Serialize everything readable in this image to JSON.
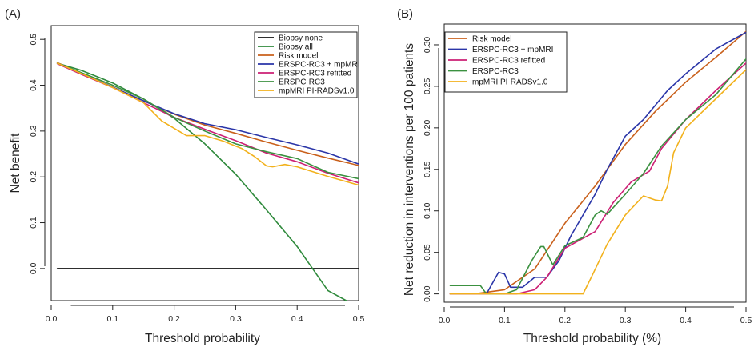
{
  "chart_data": [
    {
      "type": "line",
      "panel_label": "(A)",
      "xlabel": "Threshold probability",
      "ylabel": "Net benefit",
      "xlim": [
        0.0,
        0.5
      ],
      "ylim": [
        -0.07,
        0.53
      ],
      "xticks": [
        0.0,
        0.1,
        0.2,
        0.3,
        0.4,
        0.5
      ],
      "xtick_labels": [
        "0.0",
        "0.1",
        "0.2",
        "0.3",
        "0.4",
        "0.5"
      ],
      "yticks": [
        0.0,
        0.1,
        0.2,
        0.3,
        0.4,
        0.5
      ],
      "ytick_labels": [
        "0.0",
        "0.1",
        "0.2",
        "0.3",
        "0.4",
        "0.5"
      ],
      "legend_position": "top-right",
      "series": [
        {
          "name": "Biopsy none",
          "color": "#111111",
          "x": [
            0.01,
            0.5
          ],
          "y": [
            0.0,
            0.0
          ]
        },
        {
          "name": "Biopsy all",
          "color": "#2f8a3c",
          "x": [
            0.01,
            0.05,
            0.1,
            0.15,
            0.2,
            0.25,
            0.3,
            0.35,
            0.4,
            0.45,
            0.48
          ],
          "y": [
            0.448,
            0.432,
            0.405,
            0.37,
            0.328,
            0.272,
            0.206,
            0.128,
            0.048,
            -0.048,
            -0.07
          ]
        },
        {
          "name": "Risk model",
          "color": "#c9601b",
          "x": [
            0.01,
            0.05,
            0.1,
            0.15,
            0.2,
            0.25,
            0.3,
            0.35,
            0.4,
            0.45,
            0.5
          ],
          "y": [
            0.449,
            0.425,
            0.396,
            0.366,
            0.337,
            0.313,
            0.295,
            0.276,
            0.258,
            0.241,
            0.225
          ]
        },
        {
          "name": "ERSPC-RC3 + mpMRI",
          "color": "#2a35a8",
          "x": [
            0.01,
            0.05,
            0.1,
            0.15,
            0.2,
            0.25,
            0.3,
            0.35,
            0.4,
            0.45,
            0.5
          ],
          "y": [
            0.448,
            0.424,
            0.396,
            0.366,
            0.338,
            0.316,
            0.303,
            0.286,
            0.27,
            0.252,
            0.228
          ]
        },
        {
          "name": "ERSPC-RC3 refitted",
          "color": "#cc1f74",
          "x": [
            0.01,
            0.05,
            0.1,
            0.15,
            0.2,
            0.25,
            0.3,
            0.35,
            0.4,
            0.45,
            0.5
          ],
          "y": [
            0.447,
            0.423,
            0.395,
            0.362,
            0.33,
            0.304,
            0.279,
            0.252,
            0.233,
            0.208,
            0.187
          ]
        },
        {
          "name": "ERSPC-RC3",
          "color": "#3b9140",
          "x": [
            0.01,
            0.05,
            0.1,
            0.15,
            0.2,
            0.25,
            0.3,
            0.35,
            0.4,
            0.45,
            0.5
          ],
          "y": [
            0.448,
            0.427,
            0.4,
            0.37,
            0.33,
            0.3,
            0.272,
            0.255,
            0.24,
            0.21,
            0.196
          ]
        },
        {
          "name": "mpMRI PI-RADSv1.0",
          "color": "#f2b11c",
          "x": [
            0.01,
            0.05,
            0.1,
            0.15,
            0.18,
            0.22,
            0.25,
            0.28,
            0.31,
            0.33,
            0.35,
            0.36,
            0.38,
            0.4,
            0.45,
            0.5
          ],
          "y": [
            0.448,
            0.425,
            0.395,
            0.362,
            0.322,
            0.29,
            0.29,
            0.278,
            0.262,
            0.245,
            0.224,
            0.222,
            0.227,
            0.222,
            0.201,
            0.182
          ]
        }
      ]
    },
    {
      "type": "line",
      "panel_label": "(B)",
      "xlabel": "Threshold probability (%)",
      "ylabel": "Net reduction in interventions per 100 patients",
      "xlim": [
        0.0,
        0.5
      ],
      "ylim": [
        -0.01,
        0.325
      ],
      "xticks": [
        0.0,
        0.1,
        0.2,
        0.3,
        0.4,
        0.5
      ],
      "xtick_labels": [
        "0.0",
        "0.1",
        "0.2",
        "0.3",
        "0.4",
        "0.5"
      ],
      "yticks": [
        0.0,
        0.05,
        0.1,
        0.15,
        0.2,
        0.25,
        0.3
      ],
      "ytick_labels": [
        "0.00",
        "0.05",
        "0.10",
        "0.15",
        "0.20",
        "0.25",
        "0.30"
      ],
      "legend_position": "top-left",
      "series": [
        {
          "name": "Risk model",
          "color": "#c9601b",
          "x": [
            0.01,
            0.05,
            0.1,
            0.15,
            0.2,
            0.25,
            0.3,
            0.35,
            0.4,
            0.45,
            0.5
          ],
          "y": [
            0.0,
            0.0,
            0.005,
            0.03,
            0.085,
            0.13,
            0.18,
            0.22,
            0.255,
            0.285,
            0.316
          ]
        },
        {
          "name": "ERSPC-RC3 + mpMRI",
          "color": "#2a35a8",
          "x": [
            0.01,
            0.05,
            0.07,
            0.09,
            0.1,
            0.11,
            0.13,
            0.15,
            0.17,
            0.19,
            0.21,
            0.25,
            0.27,
            0.3,
            0.33,
            0.37,
            0.4,
            0.45,
            0.5
          ],
          "y": [
            0.0,
            0.0,
            0.0,
            0.026,
            0.024,
            0.008,
            0.008,
            0.02,
            0.02,
            0.04,
            0.07,
            0.12,
            0.15,
            0.19,
            0.21,
            0.245,
            0.265,
            0.295,
            0.315
          ]
        },
        {
          "name": "ERSPC-RC3 refitted",
          "color": "#cc1f74",
          "x": [
            0.01,
            0.12,
            0.15,
            0.17,
            0.2,
            0.25,
            0.28,
            0.31,
            0.34,
            0.36,
            0.4,
            0.45,
            0.5
          ],
          "y": [
            0.0,
            0.0,
            0.005,
            0.02,
            0.055,
            0.075,
            0.11,
            0.135,
            0.148,
            0.175,
            0.21,
            0.245,
            0.278
          ]
        },
        {
          "name": "ERSPC-RC3",
          "color": "#3b9140",
          "x": [
            0.01,
            0.04,
            0.06,
            0.07,
            0.1,
            0.12,
            0.145,
            0.16,
            0.165,
            0.18,
            0.2,
            0.23,
            0.25,
            0.26,
            0.27,
            0.3,
            0.33,
            0.36,
            0.4,
            0.45,
            0.5
          ],
          "y": [
            0.01,
            0.01,
            0.01,
            0.0,
            0.0,
            0.005,
            0.04,
            0.057,
            0.057,
            0.035,
            0.058,
            0.068,
            0.095,
            0.1,
            0.096,
            0.12,
            0.145,
            0.178,
            0.21,
            0.24,
            0.283
          ]
        },
        {
          "name": "mpMRI PI-RADSv1.0",
          "color": "#f2b11c",
          "x": [
            0.01,
            0.23,
            0.245,
            0.27,
            0.3,
            0.33,
            0.35,
            0.36,
            0.37,
            0.38,
            0.4,
            0.45,
            0.5
          ],
          "y": [
            0.0,
            0.0,
            0.022,
            0.06,
            0.095,
            0.118,
            0.113,
            0.112,
            0.13,
            0.17,
            0.2,
            0.235,
            0.27
          ]
        }
      ]
    }
  ]
}
